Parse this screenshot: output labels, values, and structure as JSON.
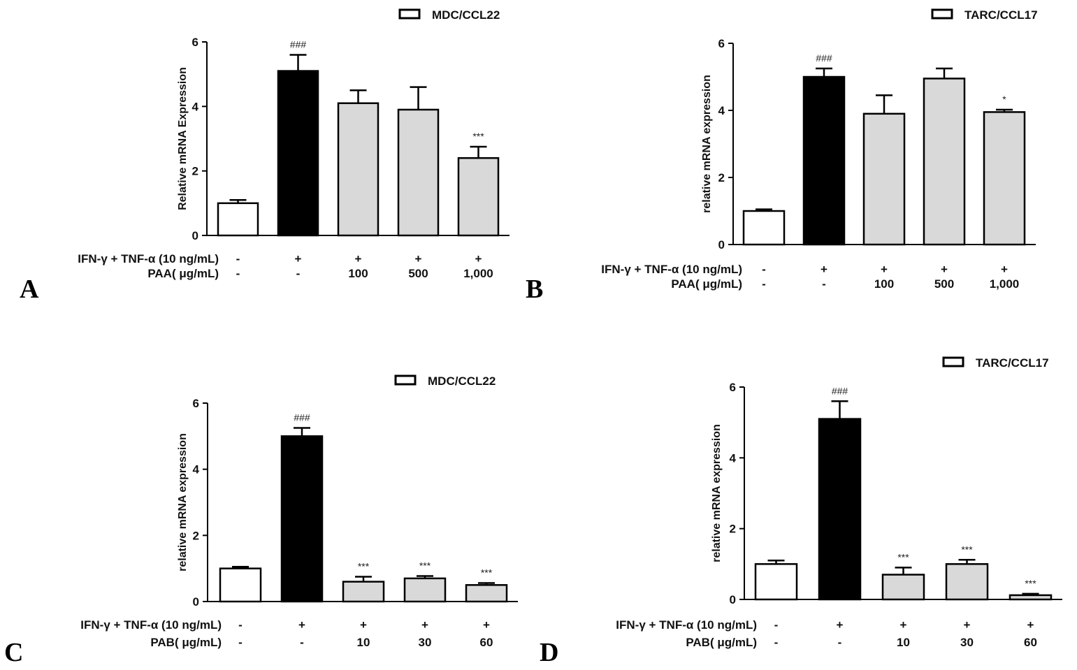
{
  "chart_data": [
    {
      "panel": "A",
      "type": "bar",
      "title": "",
      "legend": "MDC/CCL22",
      "ylabel": "Relative mRNA Expression",
      "xlabel": "",
      "ylim": [
        0,
        6
      ],
      "yticks": [
        "0",
        "2",
        "4",
        "6"
      ],
      "row_labels": [
        "IFN-γ + TNF-α  (10 ng/mL)",
        "PAA( μg/mL)"
      ],
      "row1": [
        "-",
        "+",
        "+",
        "+",
        "+"
      ],
      "row2": [
        "-",
        "-",
        "100",
        "500",
        "1,000"
      ],
      "values": [
        1.0,
        5.1,
        4.1,
        3.9,
        2.4
      ],
      "errors": [
        0.1,
        0.5,
        0.4,
        0.7,
        0.35
      ],
      "colors": [
        "#ffffff",
        "#000000",
        "#d9d9d9",
        "#d9d9d9",
        "#d9d9d9"
      ],
      "sig": [
        "",
        "###",
        "",
        "",
        "***"
      ]
    },
    {
      "panel": "B",
      "type": "bar",
      "title": "",
      "legend": "TARC/CCL17",
      "ylabel": "relative mRNA expression",
      "xlabel": "",
      "ylim": [
        0,
        6
      ],
      "yticks": [
        "0",
        "2",
        "4",
        "6"
      ],
      "row_labels": [
        "IFN-γ + TNF-α  (10 ng/mL)",
        "PAA( μg/mL)"
      ],
      "row1": [
        "-",
        "+",
        "+",
        "+",
        "+"
      ],
      "row2": [
        "-",
        "-",
        "100",
        "500",
        "1,000"
      ],
      "values": [
        1.0,
        5.0,
        3.9,
        4.95,
        3.95
      ],
      "errors": [
        0.05,
        0.25,
        0.55,
        0.3,
        0.07
      ],
      "colors": [
        "#ffffff",
        "#000000",
        "#d9d9d9",
        "#d9d9d9",
        "#d9d9d9"
      ],
      "sig": [
        "",
        "###",
        "",
        "",
        "*"
      ]
    },
    {
      "panel": "C",
      "type": "bar",
      "title": "",
      "legend": "MDC/CCL22",
      "ylabel": "relative mRNA expression",
      "xlabel": "",
      "ylim": [
        0,
        6
      ],
      "yticks": [
        "0",
        "2",
        "4",
        "6"
      ],
      "row_labels": [
        "IFN-γ + TNF-α  (10 ng/mL)",
        "PAB( μg/mL)"
      ],
      "row1": [
        "-",
        "+",
        "+",
        "+",
        "+"
      ],
      "row2": [
        "-",
        "-",
        "10",
        "30",
        "60"
      ],
      "values": [
        1.0,
        5.0,
        0.6,
        0.7,
        0.5
      ],
      "errors": [
        0.05,
        0.25,
        0.15,
        0.07,
        0.06
      ],
      "colors": [
        "#ffffff",
        "#000000",
        "#d9d9d9",
        "#d9d9d9",
        "#d9d9d9"
      ],
      "sig": [
        "",
        "###",
        "***",
        "***",
        "***"
      ]
    },
    {
      "panel": "D",
      "type": "bar",
      "title": "",
      "legend": "TARC/CCL17",
      "ylabel": "relative mRNA expression",
      "xlabel": "",
      "ylim": [
        0,
        6
      ],
      "yticks": [
        "0",
        "2",
        "4",
        "6"
      ],
      "row_labels": [
        "IFN-γ + TNF-α  (10 ng/mL)",
        "PAB( μg/mL)"
      ],
      "row1": [
        "-",
        "+",
        "+",
        "+",
        "+"
      ],
      "row2": [
        "-",
        "-",
        "10",
        "30",
        "60"
      ],
      "values": [
        1.0,
        5.1,
        0.7,
        1.0,
        0.12
      ],
      "errors": [
        0.1,
        0.5,
        0.2,
        0.12,
        0.04
      ],
      "colors": [
        "#ffffff",
        "#000000",
        "#d9d9d9",
        "#d9d9d9",
        "#d9d9d9"
      ],
      "sig": [
        "",
        "###",
        "***",
        "***",
        "***"
      ]
    }
  ]
}
